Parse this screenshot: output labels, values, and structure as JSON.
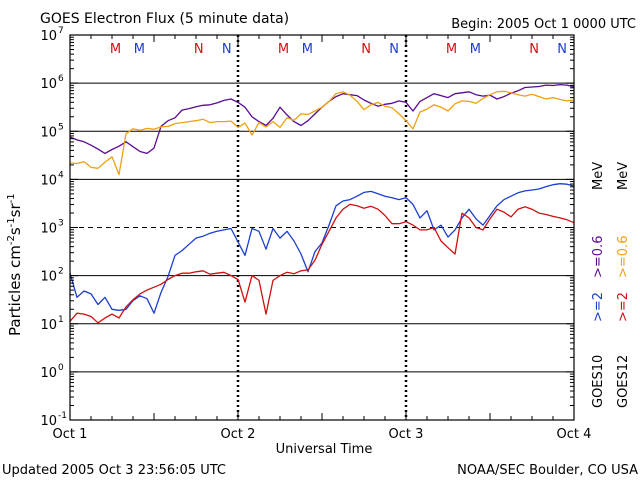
{
  "chart_data": {
    "type": "line",
    "title": "GOES Electron Flux (5 minute data)",
    "begin_label": "Begin: 2005 Oct 1 0000 UTC",
    "xlabel": "Universal Time",
    "ylabel_parts": [
      "Particles cm",
      "-2",
      "s",
      "-1",
      "sr",
      "-1"
    ],
    "x_range_hours": [
      0,
      72
    ],
    "x_ticks": [
      {
        "h": 0,
        "label": "Oct 1"
      },
      {
        "h": 24,
        "label": "Oct 2"
      },
      {
        "h": 48,
        "label": "Oct 3"
      },
      {
        "h": 72,
        "label": "Oct 4"
      }
    ],
    "y_log_range": [
      -1,
      7
    ],
    "y_ticks": [
      {
        "exp": 7,
        "label": "7"
      },
      {
        "exp": 6,
        "label": "6"
      },
      {
        "exp": 5,
        "label": "5"
      },
      {
        "exp": 4,
        "label": "4"
      },
      {
        "exp": 3,
        "label": "3"
      },
      {
        "exp": 2,
        "label": "2"
      },
      {
        "exp": 1,
        "label": "1"
      },
      {
        "exp": 0,
        "label": "0"
      },
      {
        "exp": -1,
        "label": "-1"
      }
    ],
    "y_tick_base": "10",
    "threshold_exp": 3,
    "mn_markers": [
      {
        "h": 6.5,
        "label": "M",
        "color": "#d01010"
      },
      {
        "h": 9.9,
        "label": "M",
        "color": "#1a3fd0"
      },
      {
        "h": 18.4,
        "label": "N",
        "color": "#d01010"
      },
      {
        "h": 22.4,
        "label": "N",
        "color": "#1a3fd0"
      },
      {
        "h": 30.5,
        "label": "M",
        "color": "#d01010"
      },
      {
        "h": 33.9,
        "label": "M",
        "color": "#1a3fd0"
      },
      {
        "h": 42.3,
        "label": "N",
        "color": "#d01010"
      },
      {
        "h": 46.3,
        "label": "N",
        "color": "#1a3fd0"
      },
      {
        "h": 54.5,
        "label": "M",
        "color": "#d01010"
      },
      {
        "h": 57.9,
        "label": "M",
        "color": "#1a3fd0"
      },
      {
        "h": 66.3,
        "label": "N",
        "color": "#d01010"
      },
      {
        "h": 70.3,
        "label": "N",
        "color": "#1a3fd0"
      }
    ],
    "legend": {
      "sat_a": "GOES10",
      "sat_b": "GOES12",
      "ch_hi_a": ">=2",
      "ch_lo_a": ">=0.6",
      "ch_hi_b": ">=2",
      "ch_lo_b": ">=0.6",
      "unit": "MeV"
    },
    "series": [
      {
        "name": "GOES10 >=0.6 MeV",
        "color": "#5a0a96",
        "x": [
          0,
          1,
          2,
          3,
          4,
          5,
          6,
          7,
          8,
          9,
          10,
          11,
          12,
          13,
          14,
          15,
          16,
          17,
          18,
          19,
          20,
          21,
          22,
          23,
          24,
          25,
          26,
          27,
          28,
          29,
          30,
          31,
          32,
          33,
          34,
          35,
          36,
          37,
          38,
          39,
          40,
          41,
          42,
          43,
          44,
          45,
          46,
          47,
          48,
          49,
          50,
          51,
          52,
          53,
          54,
          55,
          56,
          57,
          58,
          59,
          60,
          61,
          62,
          63,
          64,
          65,
          66,
          67,
          68,
          69,
          70,
          71,
          72
        ],
        "y": [
          4.88,
          4.82,
          4.78,
          4.71,
          4.63,
          4.54,
          4.62,
          4.69,
          4.78,
          4.68,
          4.58,
          4.54,
          4.65,
          5.1,
          5.22,
          5.28,
          5.44,
          5.47,
          5.51,
          5.54,
          5.55,
          5.59,
          5.64,
          5.67,
          5.6,
          5.5,
          5.3,
          5.2,
          5.12,
          5.27,
          5.5,
          5.34,
          5.2,
          5.12,
          5.22,
          5.36,
          5.5,
          5.62,
          5.72,
          5.78,
          5.76,
          5.74,
          5.65,
          5.58,
          5.52,
          5.56,
          5.58,
          5.63,
          5.6,
          5.42,
          5.62,
          5.7,
          5.78,
          5.74,
          5.7,
          5.78,
          5.8,
          5.82,
          5.76,
          5.73,
          5.75,
          5.67,
          5.72,
          5.79,
          5.84,
          5.91,
          5.92,
          5.93,
          5.96,
          5.95,
          5.97,
          5.96,
          5.92
        ]
      },
      {
        "name": "GOES12 >=0.6 MeV",
        "color": "#f0a010",
        "x": [
          0,
          1,
          2,
          3,
          4,
          5,
          6,
          7,
          8,
          9,
          10,
          11,
          12,
          13,
          14,
          15,
          16,
          17,
          18,
          19,
          20,
          21,
          22,
          23,
          24,
          25,
          26,
          27,
          28,
          29,
          30,
          31,
          32,
          33,
          34,
          35,
          36,
          37,
          38,
          39,
          40,
          41,
          42,
          43,
          44,
          45,
          46,
          47,
          48,
          49,
          50,
          51,
          52,
          53,
          54,
          55,
          56,
          57,
          58,
          59,
          60,
          61,
          62,
          63,
          64,
          65,
          66,
          67,
          68,
          69,
          70,
          71,
          72
        ],
        "y": [
          4.34,
          4.33,
          4.37,
          4.25,
          4.23,
          4.36,
          4.47,
          4.1,
          4.95,
          5.05,
          5.02,
          5.06,
          5.04,
          5.09,
          5.1,
          5.16,
          5.18,
          5.2,
          5.22,
          5.25,
          5.18,
          5.2,
          5.2,
          5.21,
          5.08,
          5.17,
          4.92,
          5.18,
          5.09,
          5.2,
          5.08,
          5.28,
          5.23,
          5.36,
          5.35,
          5.42,
          5.5,
          5.62,
          5.78,
          5.82,
          5.75,
          5.62,
          5.45,
          5.55,
          5.6,
          5.52,
          5.49,
          5.36,
          5.22,
          5.05,
          5.4,
          5.46,
          5.55,
          5.5,
          5.42,
          5.57,
          5.63,
          5.62,
          5.58,
          5.68,
          5.76,
          5.82,
          5.83,
          5.8,
          5.76,
          5.73,
          5.77,
          5.72,
          5.67,
          5.7,
          5.66,
          5.63,
          5.65
        ]
      },
      {
        "name": "GOES10 >=2 MeV",
        "color": "#1a3fd0",
        "x": [
          0,
          1,
          2,
          3,
          4,
          5,
          6,
          7,
          8,
          9,
          10,
          11,
          12,
          13,
          14,
          15,
          16,
          17,
          18,
          19,
          20,
          21,
          22,
          23,
          24,
          25,
          26,
          27,
          28,
          29,
          30,
          31,
          32,
          33,
          34,
          35,
          36,
          37,
          38,
          39,
          40,
          41,
          42,
          43,
          44,
          45,
          46,
          47,
          48,
          49,
          50,
          51,
          52,
          53,
          54,
          55,
          56,
          57,
          58,
          59,
          60,
          61,
          62,
          63,
          64,
          65,
          66,
          67,
          68,
          69,
          70,
          71,
          72
        ],
        "y": [
          2.05,
          1.55,
          1.68,
          1.62,
          1.4,
          1.55,
          1.3,
          1.28,
          1.3,
          1.48,
          1.58,
          1.52,
          1.22,
          1.65,
          1.98,
          2.42,
          2.52,
          2.65,
          2.78,
          2.82,
          2.88,
          2.92,
          2.95,
          2.98,
          2.7,
          2.42,
          2.98,
          2.92,
          2.55,
          2.98,
          2.78,
          2.92,
          2.72,
          2.45,
          2.08,
          2.5,
          2.68,
          3.05,
          3.45,
          3.55,
          3.58,
          3.65,
          3.73,
          3.75,
          3.7,
          3.65,
          3.62,
          3.58,
          3.62,
          3.48,
          3.2,
          3.35,
          2.95,
          3.05,
          2.8,
          2.95,
          3.2,
          3.38,
          3.18,
          3.05,
          3.25,
          3.45,
          3.58,
          3.65,
          3.72,
          3.76,
          3.78,
          3.8,
          3.85,
          3.89,
          3.91,
          3.9,
          3.86
        ]
      },
      {
        "name": "GOES12 >=2 MeV",
        "color": "#d01010",
        "x": [
          0,
          1,
          2,
          3,
          4,
          5,
          6,
          7,
          8,
          9,
          10,
          11,
          12,
          13,
          14,
          15,
          16,
          17,
          18,
          19,
          20,
          21,
          22,
          23,
          24,
          25,
          26,
          27,
          28,
          29,
          30,
          31,
          32,
          33,
          34,
          35,
          36,
          37,
          38,
          39,
          40,
          41,
          42,
          43,
          44,
          45,
          46,
          47,
          48,
          49,
          50,
          51,
          52,
          53,
          54,
          55,
          56,
          57,
          58,
          59,
          60,
          61,
          62,
          63,
          64,
          65,
          66,
          67,
          68,
          69,
          70,
          71,
          72
        ],
        "y": [
          1.05,
          1.22,
          1.2,
          1.15,
          1.02,
          1.12,
          1.2,
          1.12,
          1.35,
          1.5,
          1.62,
          1.7,
          1.76,
          1.82,
          1.92,
          2.0,
          2.05,
          2.05,
          2.08,
          2.1,
          2.03,
          2.05,
          2.07,
          2.0,
          1.92,
          1.45,
          2.0,
          1.9,
          1.2,
          1.9,
          2.0,
          2.07,
          2.04,
          2.1,
          2.12,
          2.32,
          2.65,
          2.92,
          3.2,
          3.38,
          3.48,
          3.45,
          3.4,
          3.44,
          3.38,
          3.25,
          3.08,
          3.08,
          3.12,
          3.05,
          2.95,
          2.95,
          3.0,
          2.72,
          2.58,
          2.45,
          3.3,
          3.2,
          3.0,
          2.95,
          3.18,
          3.38,
          3.32,
          3.22,
          3.38,
          3.43,
          3.38,
          3.3,
          3.27,
          3.23,
          3.2,
          3.16,
          3.1
        ]
      }
    ]
  },
  "footer": {
    "updated": "Updated 2005 Oct  3 23:56:05 UTC",
    "source": "NOAA/SEC Boulder, CO USA"
  }
}
